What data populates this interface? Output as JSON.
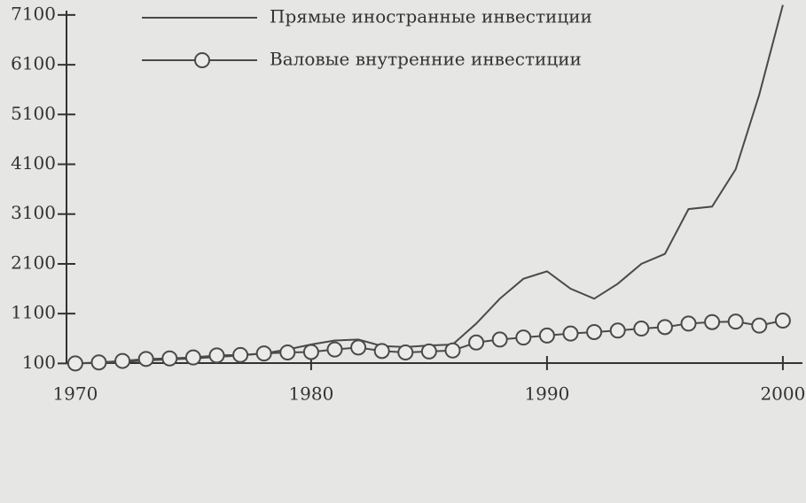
{
  "chart_data": {
    "type": "line",
    "x": [
      1970,
      1971,
      1972,
      1973,
      1974,
      1975,
      1976,
      1977,
      1978,
      1979,
      1980,
      1981,
      1982,
      1983,
      1984,
      1985,
      1986,
      1987,
      1988,
      1989,
      1990,
      1991,
      1992,
      1993,
      1994,
      1995,
      1996,
      1997,
      1998,
      1999,
      2000
    ],
    "series": [
      {
        "name": "Прямые иностранные инвестиции",
        "color": "#4a4a4a",
        "marker": "none",
        "values": [
          100,
          110,
          130,
          160,
          180,
          200,
          230,
          260,
          300,
          380,
          480,
          560,
          580,
          450,
          430,
          460,
          480,
          900,
          1400,
          1800,
          1950,
          1600,
          1400,
          1700,
          2100,
          2300,
          3200,
          3250,
          4000,
          5500,
          7300
        ]
      },
      {
        "name": "Валовые внутренние инвестиции",
        "color": "#4a4a4a",
        "marker": "circle",
        "values": [
          100,
          120,
          150,
          190,
          200,
          220,
          260,
          270,
          300,
          320,
          330,
          380,
          420,
          350,
          320,
          340,
          360,
          520,
          580,
          620,
          660,
          700,
          730,
          760,
          800,
          830,
          900,
          930,
          940,
          860,
          960
        ]
      }
    ],
    "xlim": [
      1968.5,
      2001
    ],
    "xticks": [
      1970,
      1980,
      1990,
      2000
    ],
    "ylim": [
      0,
      7400
    ],
    "yticks": [
      100,
      1100,
      2100,
      3100,
      4100,
      5100,
      6100,
      7100
    ],
    "grid": false,
    "legend": "top"
  }
}
